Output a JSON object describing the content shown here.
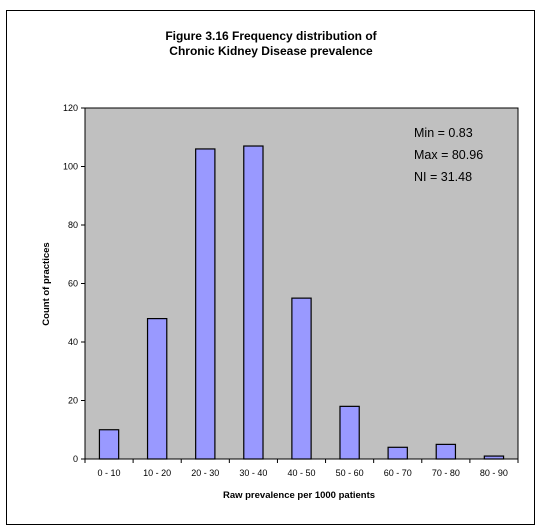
{
  "chart_data": {
    "type": "bar",
    "title_line1": "Figure 3.16 Frequency distribution of",
    "title_line2": "Chronic Kidney Disease prevalence",
    "xlabel": "Raw prevalence per 1000 patients",
    "ylabel": "Count of practices",
    "categories": [
      "0 - 10",
      "10 - 20",
      "20 - 30",
      "30 - 40",
      "40 - 50",
      "50 - 60",
      "60 - 70",
      "70 - 80",
      "80 - 90"
    ],
    "values": [
      10,
      48,
      106,
      107,
      55,
      18,
      4,
      5,
      1
    ],
    "ylim": [
      0,
      120
    ],
    "yticks": [
      "0",
      "20",
      "40",
      "60",
      "80",
      "100",
      "120"
    ],
    "annotations": [
      "Min = 0.83",
      "Max = 80.96",
      "NI = 31.48"
    ],
    "legend": "none",
    "grid": false,
    "colors": {
      "bar_fill": "#9999ff",
      "bar_stroke": "#000000",
      "plot_background": "#c0c0c0"
    }
  }
}
